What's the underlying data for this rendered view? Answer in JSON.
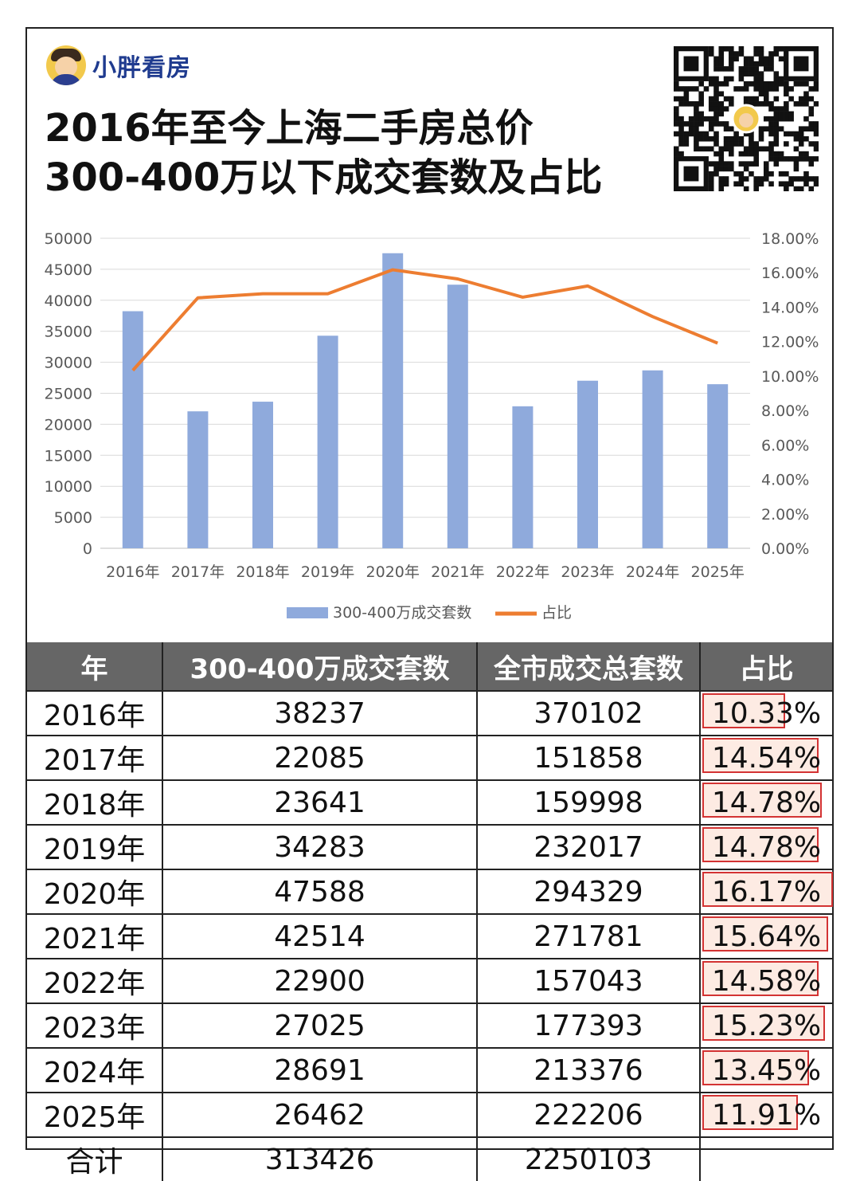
{
  "brand": {
    "name": "小胖看房"
  },
  "title": {
    "line1": "2016年至今上海二手房总价",
    "line2": "300-400万以下成交套数及占比"
  },
  "chart_data": {
    "type": "bar",
    "categories": [
      "2016年",
      "2017年",
      "2018年",
      "2019年",
      "2020年",
      "2021年",
      "2022年",
      "2023年",
      "2024年",
      "2025年"
    ],
    "series": [
      {
        "name": "300-400万成交套数",
        "type": "bar",
        "axis": "left",
        "color": "#8faadc",
        "values": [
          38237,
          22085,
          23641,
          34283,
          47588,
          42514,
          22900,
          27025,
          28691,
          26462
        ]
      },
      {
        "name": "占比",
        "type": "line",
        "axis": "right",
        "color": "#ed7d31",
        "values": [
          10.33,
          14.54,
          14.78,
          14.78,
          16.17,
          15.64,
          14.58,
          15.23,
          13.45,
          11.91
        ]
      }
    ],
    "ylim": [
      0,
      50000
    ],
    "y_ticks": [
      "50000",
      "45000",
      "40000",
      "35000",
      "30000",
      "25000",
      "20000",
      "15000",
      "10000",
      "5000",
      "0"
    ],
    "y2lim": [
      0,
      18
    ],
    "y2_ticks": [
      "18.00%",
      "16.00%",
      "14.00%",
      "12.00%",
      "10.00%",
      "8.00%",
      "6.00%",
      "4.00%",
      "2.00%",
      "0.00%"
    ],
    "grid": true,
    "legend": "bottom"
  },
  "table": {
    "headers": [
      "年",
      "300-400万成交套数",
      "全市成交总套数",
      "占比"
    ],
    "rows": [
      [
        "2016年",
        "38237",
        "370102",
        "10.33%"
      ],
      [
        "2017年",
        "22085",
        "151858",
        "14.54%"
      ],
      [
        "2018年",
        "23641",
        "159998",
        "14.78%"
      ],
      [
        "2019年",
        "34283",
        "232017",
        "14.78%"
      ],
      [
        "2020年",
        "47588",
        "294329",
        "16.17%"
      ],
      [
        "2021年",
        "42514",
        "271781",
        "15.64%"
      ],
      [
        "2022年",
        "22900",
        "157043",
        "14.58%"
      ],
      [
        "2023年",
        "27025",
        "177393",
        "15.23%"
      ],
      [
        "2024年",
        "28691",
        "213376",
        "13.45%"
      ],
      [
        "2025年",
        "26462",
        "222206",
        "11.91%"
      ]
    ],
    "total": [
      "合计",
      "313426",
      "2250103",
      ""
    ],
    "highlight_color": "#d33333"
  }
}
